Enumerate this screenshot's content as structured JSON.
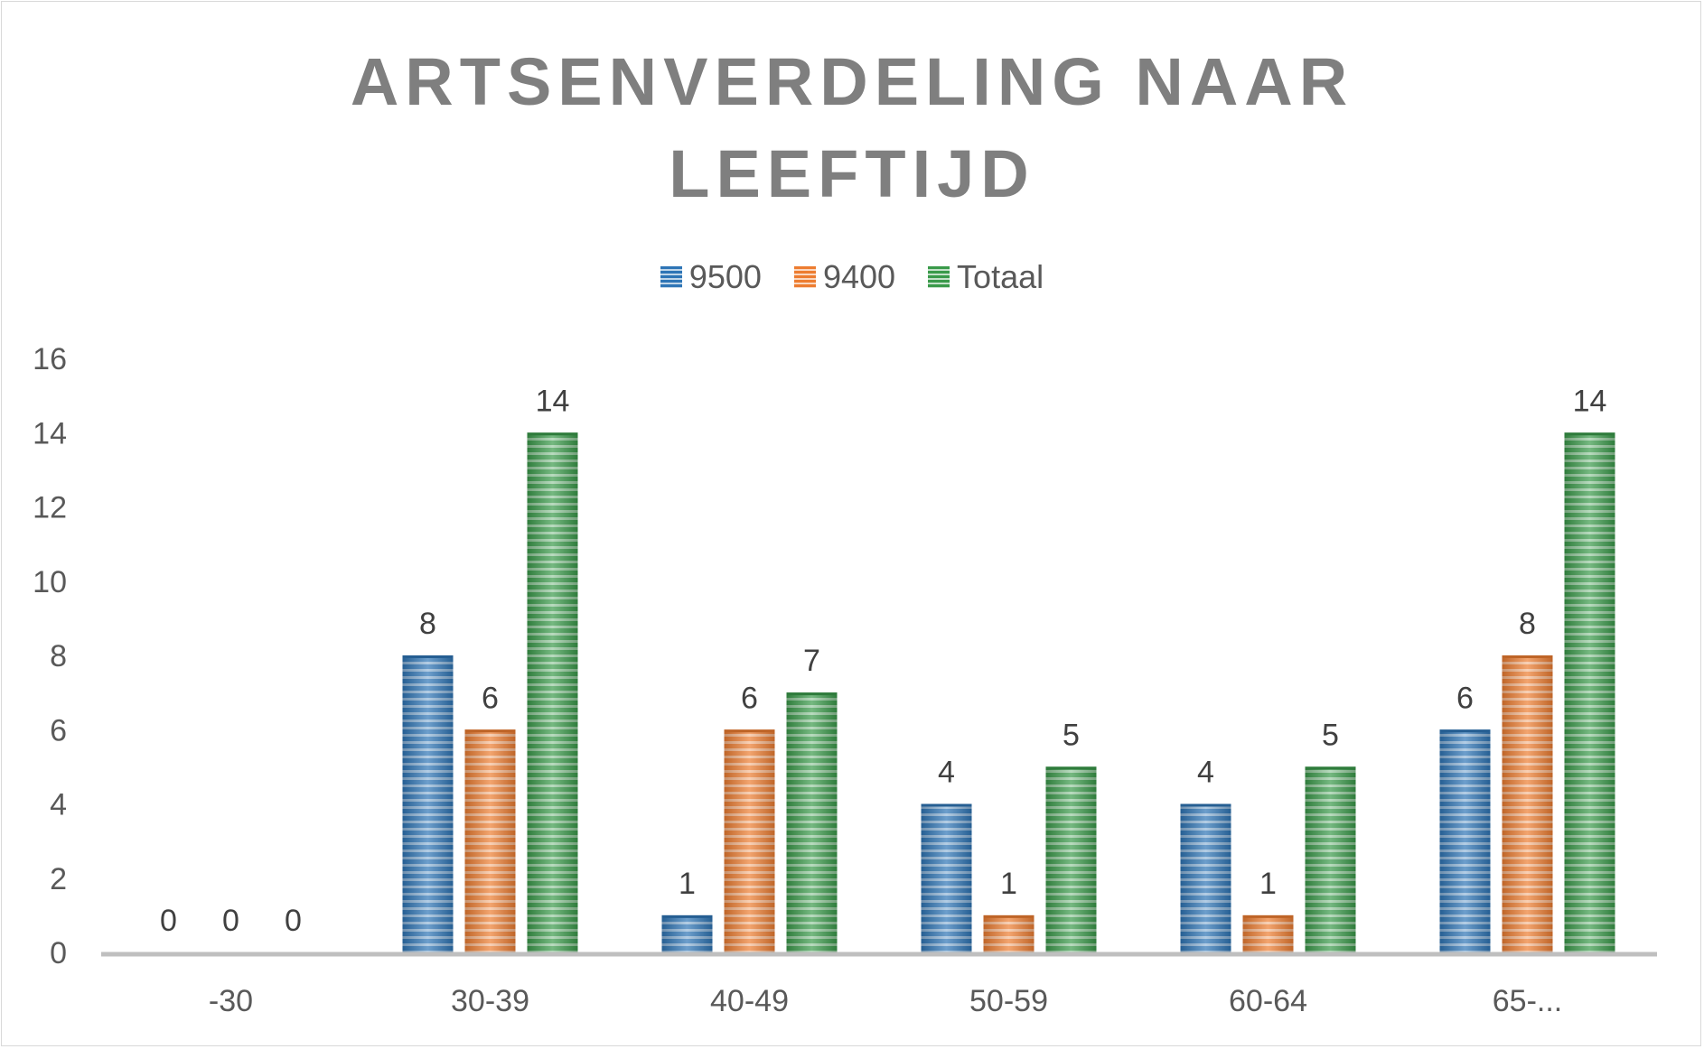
{
  "chart_data": {
    "type": "bar",
    "title_line1": "ARTSENVERDELING NAAR",
    "title_line2": "LEEFTIJD",
    "categories": [
      "-30",
      "30-39",
      "40-49",
      "50-59",
      "60-64",
      "65-..."
    ],
    "series": [
      {
        "name": "9500",
        "values": [
          0,
          8,
          1,
          4,
          4,
          6
        ],
        "color": "#2e75b6"
      },
      {
        "name": "9400",
        "values": [
          0,
          6,
          6,
          1,
          1,
          8
        ],
        "color": "#ed7d31"
      },
      {
        "name": "Totaal",
        "values": [
          0,
          14,
          7,
          5,
          5,
          14
        ],
        "color": "#3a9a4a"
      }
    ],
    "y_ticks": [
      "0",
      "2",
      "4",
      "6",
      "8",
      "10",
      "12",
      "14",
      "16"
    ],
    "ylim": [
      0,
      16
    ],
    "xlabel": "",
    "ylabel": "",
    "grid": false,
    "legend_position": "top",
    "data_labels": true
  }
}
